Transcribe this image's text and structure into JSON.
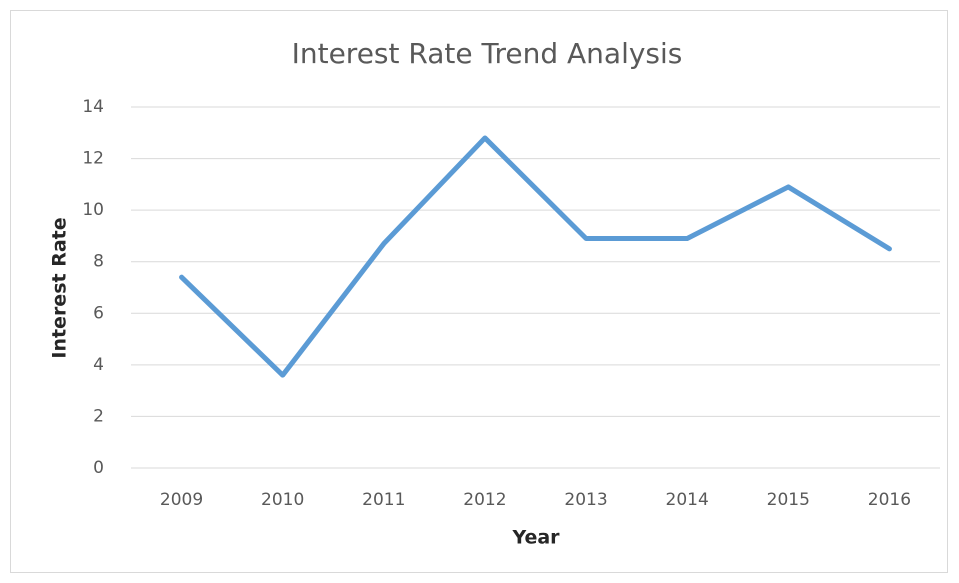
{
  "chart_data": {
    "type": "line",
    "title": "Interest Rate Trend Analysis",
    "x_label": "Year",
    "y_label": "Interest Rate",
    "categories": [
      "2009",
      "2010",
      "2011",
      "2012",
      "2013",
      "2014",
      "2015",
      "2016"
    ],
    "values": [
      7.4,
      3.6,
      8.7,
      12.8,
      8.9,
      8.9,
      10.9,
      8.5
    ],
    "color": "#5b9bd5",
    "ylim": [
      0,
      14
    ],
    "yticks": [
      0,
      2,
      4,
      6,
      8,
      10,
      12,
      14
    ],
    "grid": true
  }
}
